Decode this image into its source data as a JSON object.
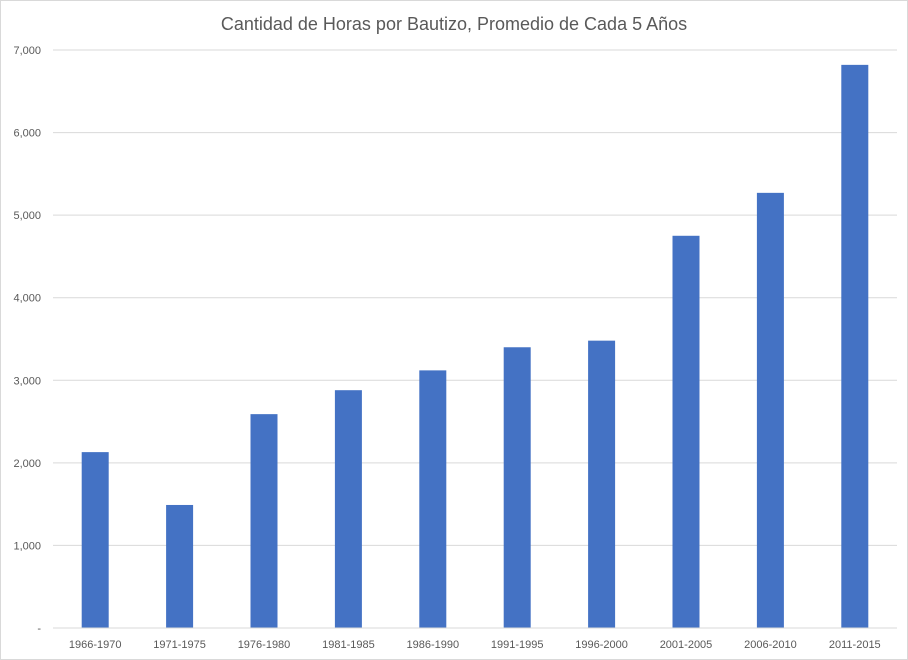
{
  "chart_data": {
    "type": "bar",
    "title": "Cantidad de Horas por Bautizo, Promedio de Cada 5 Años",
    "categories": [
      "1966-1970",
      "1971-1975",
      "1976-1980",
      "1981-1985",
      "1986-1990",
      "1991-1995",
      "1996-2000",
      "2001-2005",
      "2006-2010",
      "2011-2015"
    ],
    "values": [
      2130,
      1490,
      2590,
      2880,
      3120,
      3400,
      3480,
      4750,
      5270,
      6820
    ],
    "xlabel": "",
    "ylabel": "",
    "ylim": [
      0,
      7000
    ],
    "yticks": [
      0,
      1000,
      2000,
      3000,
      4000,
      5000,
      6000,
      7000
    ],
    "ytick_labels": [
      "-",
      "1,000",
      "2,000",
      "3,000",
      "4,000",
      "5,000",
      "6,000",
      "7,000"
    ],
    "grid": true,
    "legend": "none",
    "bar_color": "#4472C4"
  }
}
